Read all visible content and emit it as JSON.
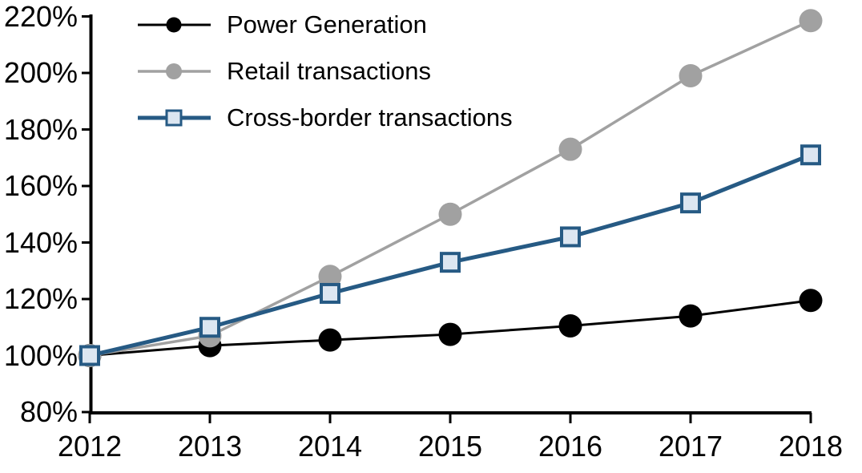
{
  "chart_data": {
    "type": "line",
    "x": [
      "2012",
      "2013",
      "2014",
      "2015",
      "2016",
      "2017",
      "2018"
    ],
    "ylim": [
      80,
      220
    ],
    "y_ticks": [
      {
        "value": 80,
        "label": "80%"
      },
      {
        "value": 100,
        "label": "100%"
      },
      {
        "value": 120,
        "label": "120%"
      },
      {
        "value": 140,
        "label": "140%"
      },
      {
        "value": 160,
        "label": "160%"
      },
      {
        "value": 180,
        "label": "180%"
      },
      {
        "value": 200,
        "label": "200%"
      },
      {
        "value": 220,
        "label": "220%"
      }
    ],
    "grid": false,
    "legend_position": "top-left",
    "axis_color": "#000000",
    "series": [
      {
        "name": "Power Generation",
        "values": [
          100,
          103.5,
          105.5,
          107.5,
          110.5,
          114,
          119.5
        ],
        "color": "#000000",
        "marker": "circle",
        "marker_fill": "#000000",
        "line_width": 3
      },
      {
        "name": "Retail transactions",
        "values": [
          100,
          107,
          128,
          150,
          173,
          199,
          218.5
        ],
        "color": "#A1A1A1",
        "marker": "circle",
        "marker_fill": "#A1A1A1",
        "line_width": 3.5
      },
      {
        "name": "Cross-border transactions",
        "values": [
          100,
          110,
          122,
          133,
          142,
          154,
          171
        ],
        "color": "#265A84",
        "marker": "square",
        "marker_fill": "#DCE6F1",
        "line_width": 5
      }
    ]
  }
}
